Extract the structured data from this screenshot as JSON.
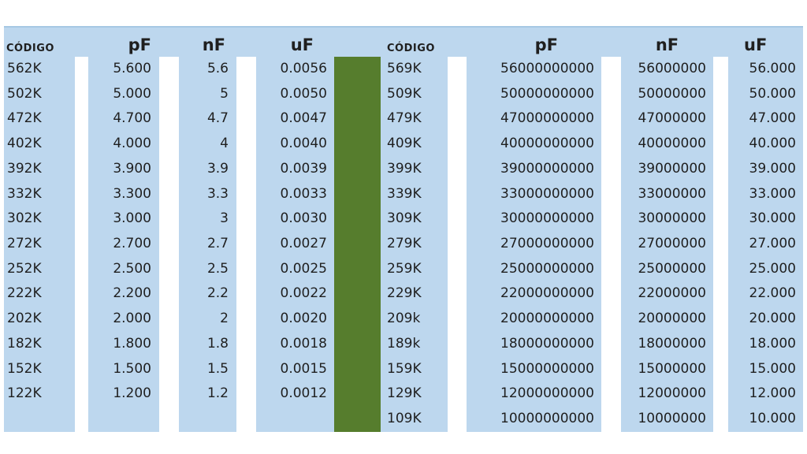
{
  "colors": {
    "column_bg": "#bdd7ee",
    "divider_green": "#567d2d",
    "text": "#1f1f1f",
    "header_top_edge": "#a6c8e4",
    "page_bg": "#ffffff"
  },
  "left_table": {
    "headers": {
      "codigo": "CÓDIGO",
      "pf": "pF",
      "nf": "nF",
      "uf": "uF"
    },
    "rows": [
      {
        "codigo": "562K",
        "pf": "5.600",
        "nf": "5.6",
        "uf": "0.0056"
      },
      {
        "codigo": "502K",
        "pf": "5.000",
        "nf": "5",
        "uf": "0.0050"
      },
      {
        "codigo": "472K",
        "pf": "4.700",
        "nf": "4.7",
        "uf": "0.0047"
      },
      {
        "codigo": "402K",
        "pf": "4.000",
        "nf": "4",
        "uf": "0.0040"
      },
      {
        "codigo": "392K",
        "pf": "3.900",
        "nf": "3.9",
        "uf": "0.0039"
      },
      {
        "codigo": "332K",
        "pf": "3.300",
        "nf": "3.3",
        "uf": "0.0033"
      },
      {
        "codigo": "302K",
        "pf": "3.000",
        "nf": "3",
        "uf": "0.0030"
      },
      {
        "codigo": "272K",
        "pf": "2.700",
        "nf": "2.7",
        "uf": "0.0027"
      },
      {
        "codigo": "252K",
        "pf": "2.500",
        "nf": "2.5",
        "uf": "0.0025"
      },
      {
        "codigo": "222K",
        "pf": "2.200",
        "nf": "2.2",
        "uf": "0.0022"
      },
      {
        "codigo": "202K",
        "pf": "2.000",
        "nf": "2",
        "uf": "0.0020"
      },
      {
        "codigo": "182K",
        "pf": "1.800",
        "nf": "1.8",
        "uf": "0.0018"
      },
      {
        "codigo": "152K",
        "pf": "1.500",
        "nf": "1.5",
        "uf": "0.0015"
      },
      {
        "codigo": "122K",
        "pf": "1.200",
        "nf": "1.2",
        "uf": "0.0012"
      }
    ]
  },
  "right_table": {
    "headers": {
      "codigo": "CÓDIGO",
      "pf": "pF",
      "nf": "nF",
      "uf": "uF"
    },
    "rows": [
      {
        "codigo": "569K",
        "pf": "56000000000",
        "nf": "56000000",
        "uf": "56.000"
      },
      {
        "codigo": "509K",
        "pf": "50000000000",
        "nf": "50000000",
        "uf": "50.000"
      },
      {
        "codigo": "479K",
        "pf": "47000000000",
        "nf": "47000000",
        "uf": "47.000"
      },
      {
        "codigo": "409K",
        "pf": "40000000000",
        "nf": "40000000",
        "uf": "40.000"
      },
      {
        "codigo": "399K",
        "pf": "39000000000",
        "nf": "39000000",
        "uf": "39.000"
      },
      {
        "codigo": "339K",
        "pf": "33000000000",
        "nf": "33000000",
        "uf": "33.000"
      },
      {
        "codigo": "309K",
        "pf": "30000000000",
        "nf": "30000000",
        "uf": "30.000"
      },
      {
        "codigo": "279K",
        "pf": "27000000000",
        "nf": "27000000",
        "uf": "27.000"
      },
      {
        "codigo": "259K",
        "pf": "25000000000",
        "nf": "25000000",
        "uf": "25.000"
      },
      {
        "codigo": "229K",
        "pf": "22000000000",
        "nf": "22000000",
        "uf": "22.000"
      },
      {
        "codigo": "209k",
        "pf": "20000000000",
        "nf": "20000000",
        "uf": "20.000"
      },
      {
        "codigo": "189k",
        "pf": "18000000000",
        "nf": "18000000",
        "uf": "18.000"
      },
      {
        "codigo": "159K",
        "pf": "15000000000",
        "nf": "15000000",
        "uf": "15.000"
      },
      {
        "codigo": "129K",
        "pf": "12000000000",
        "nf": "12000000",
        "uf": "12.000"
      },
      {
        "codigo": "109K",
        "pf": "10000000000",
        "nf": "10000000",
        "uf": "10.000"
      }
    ]
  }
}
